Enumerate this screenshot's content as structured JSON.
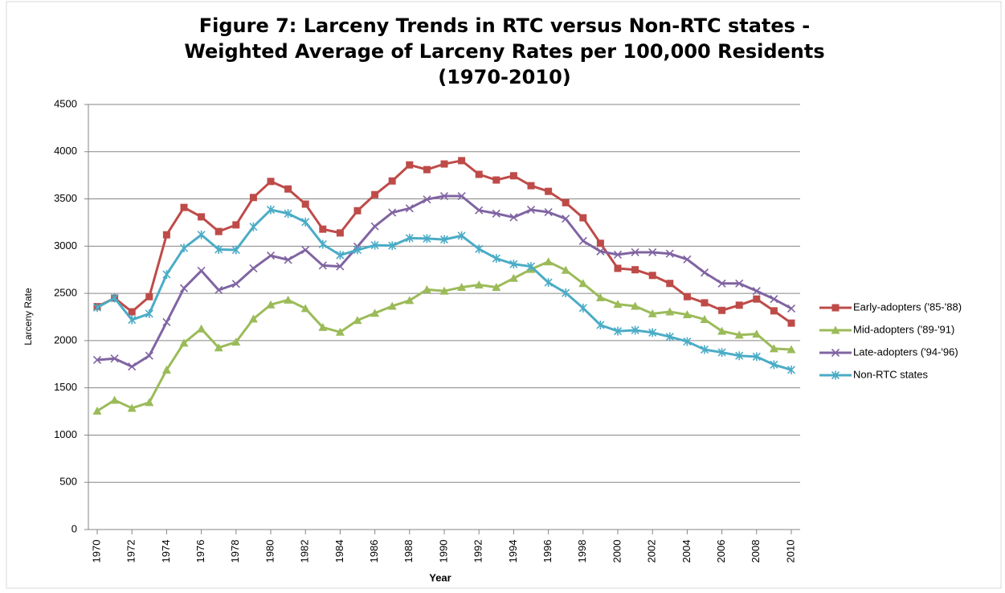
{
  "chart_data": {
    "type": "line",
    "title": [
      "Figure 7:  Larceny Trends in RTC versus Non-RTC states -",
      "Weighted Average of Larceny Rates per 100,000 Residents",
      "(1970-2010)"
    ],
    "x_label": "Year",
    "y_label": "Larceny Rate",
    "x": [
      1970,
      1971,
      1972,
      1973,
      1974,
      1975,
      1976,
      1977,
      1978,
      1979,
      1980,
      1981,
      1982,
      1983,
      1984,
      1985,
      1986,
      1987,
      1988,
      1989,
      1990,
      1991,
      1992,
      1993,
      1994,
      1995,
      1996,
      1997,
      1998,
      1999,
      2000,
      2001,
      2002,
      2003,
      2004,
      2005,
      2006,
      2007,
      2008,
      2009,
      2010
    ],
    "xlim": [
      1970,
      2010
    ],
    "xticks": [
      1970,
      1972,
      1974,
      1976,
      1978,
      1980,
      1982,
      1984,
      1986,
      1988,
      1990,
      1992,
      1994,
      1996,
      1998,
      2000,
      2002,
      2004,
      2006,
      2008,
      2010
    ],
    "ylim": [
      0,
      4500
    ],
    "yticks": [
      0,
      500,
      1000,
      1500,
      2000,
      2500,
      3000,
      3500,
      4000,
      4500
    ],
    "grid": true,
    "legend": "right",
    "series": [
      {
        "name": "Early-adopters ('85-'88)",
        "color": "#be4b48",
        "marker": "square",
        "values": [
          2360,
          2450,
          2305,
          2465,
          3120,
          3410,
          3310,
          3155,
          3225,
          3515,
          3685,
          3605,
          3445,
          3180,
          3140,
          3375,
          3545,
          3690,
          3860,
          3810,
          3870,
          3905,
          3760,
          3700,
          3745,
          3640,
          3580,
          3460,
          3300,
          3030,
          2765,
          2750,
          2690,
          2605,
          2465,
          2400,
          2320,
          2375,
          2440,
          2315,
          2185
        ]
      },
      {
        "name": "Mid-adopters ('89-'91)",
        "color": "#9bbb59",
        "marker": "triangle",
        "values": [
          1255,
          1370,
          1285,
          1345,
          1690,
          1975,
          2125,
          1925,
          1985,
          2230,
          2380,
          2430,
          2340,
          2140,
          2090,
          2215,
          2290,
          2365,
          2425,
          2540,
          2525,
          2565,
          2590,
          2565,
          2660,
          2755,
          2835,
          2745,
          2605,
          2455,
          2385,
          2365,
          2285,
          2305,
          2275,
          2225,
          2100,
          2060,
          2070,
          1915,
          1905
        ]
      },
      {
        "name": "Late-adopters ('94-'96)",
        "color": "#8064a2",
        "marker": "x",
        "values": [
          1795,
          1810,
          1725,
          1840,
          2195,
          2555,
          2740,
          2535,
          2600,
          2765,
          2900,
          2855,
          2960,
          2795,
          2785,
          2995,
          3210,
          3355,
          3400,
          3495,
          3530,
          3530,
          3380,
          3345,
          3305,
          3385,
          3360,
          3290,
          3055,
          2945,
          2910,
          2935,
          2935,
          2920,
          2860,
          2720,
          2605,
          2605,
          2525,
          2440,
          2340
        ]
      },
      {
        "name": "Non-RTC states",
        "color": "#4bacc6",
        "marker": "asterisk",
        "values": [
          2350,
          2450,
          2220,
          2285,
          2700,
          2980,
          3120,
          2965,
          2960,
          3205,
          3385,
          3345,
          3255,
          3020,
          2905,
          2960,
          3010,
          3005,
          3085,
          3080,
          3070,
          3110,
          2970,
          2870,
          2810,
          2785,
          2615,
          2505,
          2345,
          2165,
          2100,
          2110,
          2085,
          2040,
          1990,
          1905,
          1875,
          1840,
          1830,
          1745,
          1690
        ]
      }
    ]
  }
}
